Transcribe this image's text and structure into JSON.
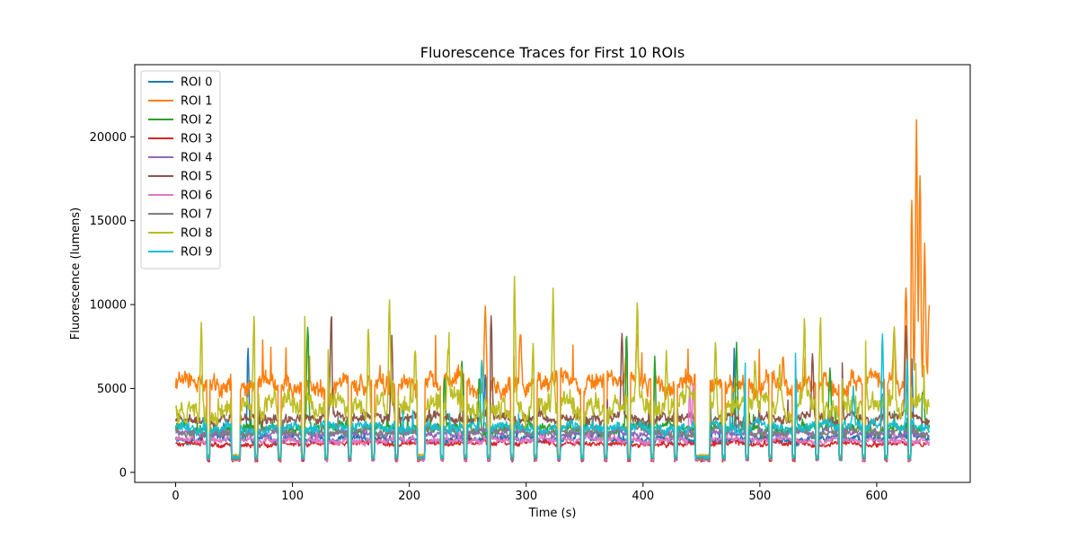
{
  "chart_data": {
    "type": "line",
    "title": "Fluorescence Traces for First 10 ROIs",
    "xlabel": "Time (s)",
    "ylabel": "Fluorescence (lumens)",
    "xlim": [
      -35,
      680
    ],
    "ylim": [
      -600,
      24300
    ],
    "xticks": [
      0,
      100,
      200,
      300,
      400,
      500,
      600
    ],
    "xtick_labels": [
      "0",
      "100",
      "200",
      "300",
      "400",
      "500",
      "600"
    ],
    "yticks": [
      0,
      5000,
      10000,
      15000,
      20000
    ],
    "ytick_labels": [
      "0",
      "5000",
      "10000",
      "15000",
      "20000"
    ],
    "grid": false,
    "legend_position": "upper-left",
    "x_range": [
      0,
      645
    ],
    "dips": [
      [
        27,
        29
      ],
      [
        48,
        55
      ],
      [
        68,
        70
      ],
      [
        88,
        90
      ],
      [
        108,
        110
      ],
      [
        128,
        130
      ],
      [
        148,
        150
      ],
      [
        168,
        170
      ],
      [
        188,
        190
      ],
      [
        207,
        213
      ],
      [
        227,
        229
      ],
      [
        247,
        249
      ],
      [
        267,
        269
      ],
      [
        287,
        289
      ],
      [
        307,
        309
      ],
      [
        327,
        329
      ],
      [
        347,
        349
      ],
      [
        367,
        369
      ],
      [
        387,
        389
      ],
      [
        407,
        409
      ],
      [
        427,
        429
      ],
      [
        445,
        457
      ],
      [
        468,
        470
      ],
      [
        488,
        490
      ],
      [
        508,
        510
      ],
      [
        528,
        530
      ],
      [
        548,
        550
      ],
      [
        568,
        570
      ],
      [
        588,
        590
      ],
      [
        607,
        609
      ],
      [
        627,
        629
      ]
    ],
    "series": [
      {
        "name": "ROI 0",
        "color": "#1f77b4",
        "base": 2000,
        "noise": 300,
        "dip": 800,
        "peaks": [
          [
            62,
            8200
          ],
          [
            478,
            7500
          ],
          [
            457,
            6500
          ],
          [
            630,
            7000
          ],
          [
            265,
            6000
          ]
        ]
      },
      {
        "name": "ROI 1",
        "color": "#ff7f0e",
        "base": 5300,
        "noise": 800,
        "dip": 1000,
        "peaks": [
          [
            265,
            10500
          ],
          [
            295,
            9000
          ],
          [
            395,
            8000
          ],
          [
            520,
            7000
          ],
          [
            615,
            9000
          ],
          [
            625,
            12000
          ],
          [
            630,
            18000
          ],
          [
            634,
            23400
          ],
          [
            637,
            20000
          ],
          [
            641,
            15000
          ],
          [
            645,
            10000
          ]
        ]
      },
      {
        "name": "ROI 2",
        "color": "#2ca02c",
        "base": 2600,
        "noise": 400,
        "dip": 900,
        "peaks": [
          [
            113,
            9300
          ],
          [
            230,
            6000
          ],
          [
            245,
            7000
          ],
          [
            260,
            6500
          ],
          [
            386,
            8900
          ],
          [
            410,
            7000
          ],
          [
            480,
            8000
          ],
          [
            560,
            6500
          ],
          [
            640,
            5000
          ]
        ]
      },
      {
        "name": "ROI 3",
        "color": "#d62728",
        "base": 1700,
        "noise": 200,
        "dip": 700,
        "peaks": []
      },
      {
        "name": "ROI 4",
        "color": "#9467bd",
        "base": 2300,
        "noise": 250,
        "dip": 800,
        "peaks": [
          [
            68,
            3000
          ]
        ]
      },
      {
        "name": "ROI 5",
        "color": "#8c564b",
        "base": 3200,
        "noise": 400,
        "dip": 900,
        "peaks": [
          [
            133,
            9600
          ],
          [
            185,
            8000
          ],
          [
            270,
            9600
          ],
          [
            382,
            8600
          ],
          [
            428,
            7000
          ],
          [
            545,
            7500
          ],
          [
            570,
            7500
          ],
          [
            625,
            9300
          ],
          [
            530,
            6000
          ]
        ]
      },
      {
        "name": "ROI 6",
        "color": "#e377c2",
        "base": 1900,
        "noise": 250,
        "dip": 750,
        "peaks": [
          [
            443,
            6000
          ],
          [
            440,
            5500
          ]
        ]
      },
      {
        "name": "ROI 7",
        "color": "#7f7f7f",
        "base": 2400,
        "noise": 300,
        "dip": 800,
        "peaks": [
          [
            605,
            5000
          ],
          [
            560,
            4000
          ]
        ]
      },
      {
        "name": "ROI 8",
        "color": "#bcbd22",
        "base": 4000,
        "noise": 900,
        "dip": 1000,
        "peaks": [
          [
            22,
            10500
          ],
          [
            67,
            10600
          ],
          [
            110,
            11000
          ],
          [
            130,
            8000
          ],
          [
            165,
            9500
          ],
          [
            183,
            10800
          ],
          [
            205,
            8000
          ],
          [
            233,
            7500
          ],
          [
            290,
            12300
          ],
          [
            306,
            8500
          ],
          [
            323,
            11400
          ],
          [
            395,
            10500
          ],
          [
            420,
            7000
          ],
          [
            462,
            8600
          ],
          [
            496,
            6500
          ],
          [
            517,
            7000
          ],
          [
            538,
            8200
          ],
          [
            552,
            9300
          ],
          [
            570,
            7200
          ],
          [
            590,
            8000
          ],
          [
            615,
            9000
          ],
          [
            628,
            10500
          ]
        ]
      },
      {
        "name": "ROI 9",
        "color": "#17becf",
        "base": 2700,
        "noise": 400,
        "dip": 900,
        "peaks": [
          [
            262,
            6800
          ],
          [
            488,
            8300
          ],
          [
            530,
            8700
          ],
          [
            605,
            8700
          ],
          [
            626,
            7000
          ],
          [
            580,
            5000
          ]
        ]
      }
    ]
  }
}
